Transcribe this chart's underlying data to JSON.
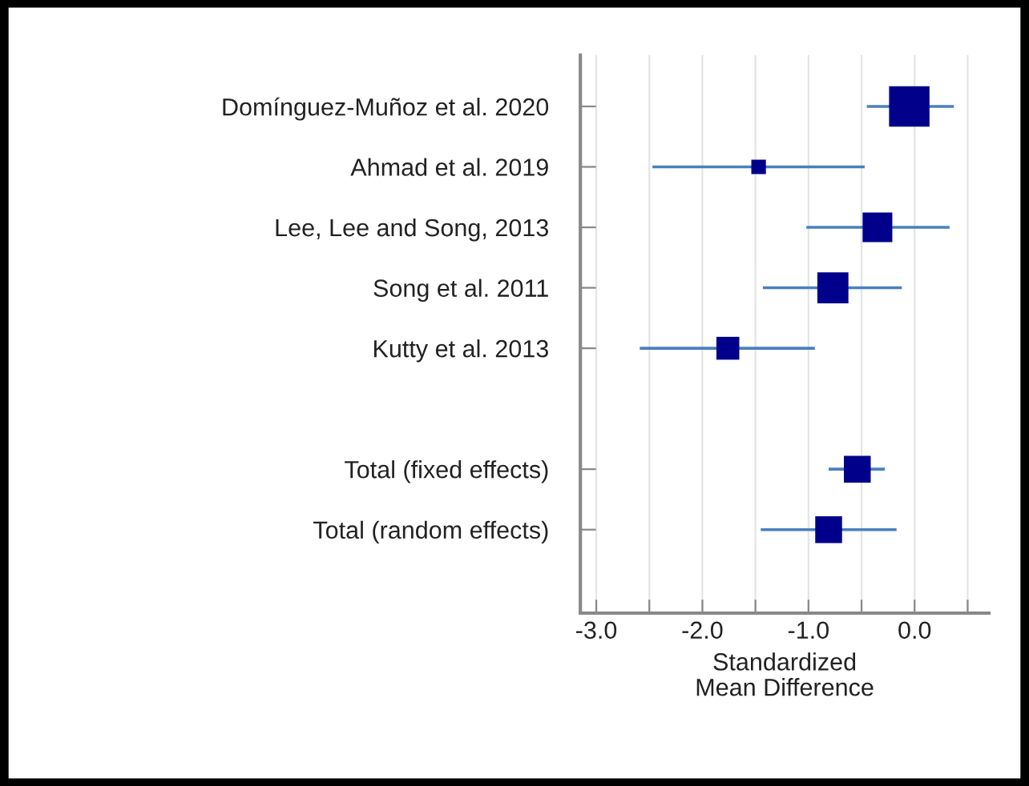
{
  "chart_data": {
    "type": "scatter",
    "orientation": "horizontal",
    "xlabel": "Standardized\nMean Difference",
    "categories": [
      "Domínguez-Muñoz et al. 2020",
      "Ahmad et al. 2019",
      "Lee, Lee and Song, 2013",
      "Song et al. 2011",
      "Kutty et al. 2013",
      null,
      "Total (fixed effects)",
      "Total (random effects)"
    ],
    "series": [
      {
        "color": "#00008b",
        "values": [
          -0.05,
          -1.47,
          -0.35,
          -0.77,
          -1.76,
          null,
          -0.54,
          -0.81
        ],
        "errors": [
          [
            -0.45,
            0.37
          ],
          [
            -2.47,
            -0.47
          ],
          [
            -1.02,
            0.33
          ],
          [
            -1.43,
            -0.12
          ],
          [
            -2.59,
            -0.94
          ],
          null,
          [
            -0.81,
            -0.28
          ],
          [
            -1.45,
            -0.17
          ]
        ],
        "sizes": [
          1,
          0.13,
          0.54,
          0.59,
          0.32,
          null,
          0.44,
          0.44
        ]
      }
    ],
    "marker": "square",
    "xlim": [
      -3.15,
      0.7
    ],
    "xticks": [
      {
        "value": -3.0,
        "label": "-3.0"
      },
      {
        "value": -2.5,
        "label": null
      },
      {
        "value": -2.0,
        "label": "-2.0"
      },
      {
        "value": -1.5,
        "label": null
      },
      {
        "value": -1.0,
        "label": "-1.0"
      },
      {
        "value": -0.5,
        "label": null
      },
      {
        "value": 0.0,
        "label": "0.0"
      },
      {
        "value": 0.5,
        "label": null
      }
    ],
    "grid": "x"
  }
}
